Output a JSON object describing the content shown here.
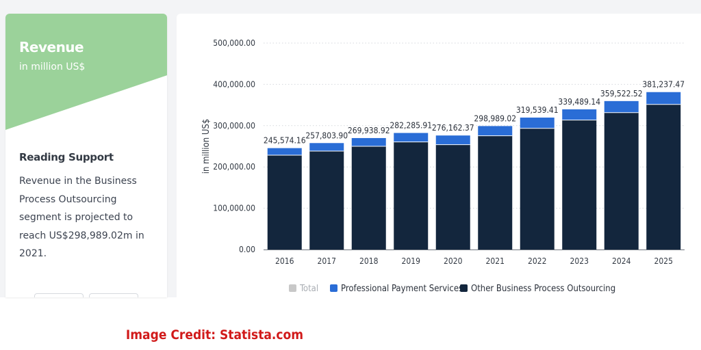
{
  "sidebar": {
    "title": "Revenue",
    "subtitle": "in million US$",
    "reading_support_title": "Reading Support",
    "reading_support_text": "Revenue in the Business Process Outsourcing segment is projected to reach US$298,989.02m in 2021."
  },
  "chart_data": {
    "type": "bar",
    "stacked": true,
    "ylabel": "in million US$",
    "ylim": [
      0,
      500000
    ],
    "ytick_labels": [
      "0.00",
      "100,000.00",
      "200,000.00",
      "300,000.00",
      "400,000.00",
      "500,000.00"
    ],
    "ytick_values": [
      0,
      100000,
      200000,
      300000,
      400000,
      500000
    ],
    "grid": true,
    "categories": [
      "2016",
      "2017",
      "2018",
      "2019",
      "2020",
      "2021",
      "2022",
      "2023",
      "2024",
      "2025"
    ],
    "series": [
      {
        "name": "Other Business Process Outsourcing",
        "color": "#13263d",
        "values": [
          228500,
          238500,
          250000,
          260500,
          254000,
          275500,
          293500,
          313500,
          331500,
          351500
        ]
      },
      {
        "name": "Professional Payment Services",
        "color": "#2a6dd6",
        "values": [
          17074.16,
          19303.9,
          19938.92,
          21785.91,
          22162.37,
          23489.02,
          26039.41,
          25989.14,
          28022.52,
          29737.47
        ]
      }
    ],
    "totals": [
      245574.16,
      257803.9,
      269938.92,
      282285.91,
      276162.37,
      298989.02,
      319539.41,
      339489.14,
      359522.52,
      381237.47
    ],
    "total_labels": [
      "245,574.16",
      "257,803.90",
      "269,938.92",
      "282,285.91",
      "276,162.37",
      "298,989.02",
      "319,539.41",
      "339,489.14",
      "359,522.52",
      "381,237.47"
    ],
    "legend": [
      {
        "label": "Total",
        "color": "#c8c8c8",
        "muted": true
      },
      {
        "label": "Professional Payment Services",
        "color": "#2a6dd6",
        "muted": false
      },
      {
        "label": "Other Business Process Outsourcing",
        "color": "#13263d",
        "muted": false
      }
    ],
    "legend_position": "bottom"
  },
  "credit": "Image Credit: Statista.com"
}
